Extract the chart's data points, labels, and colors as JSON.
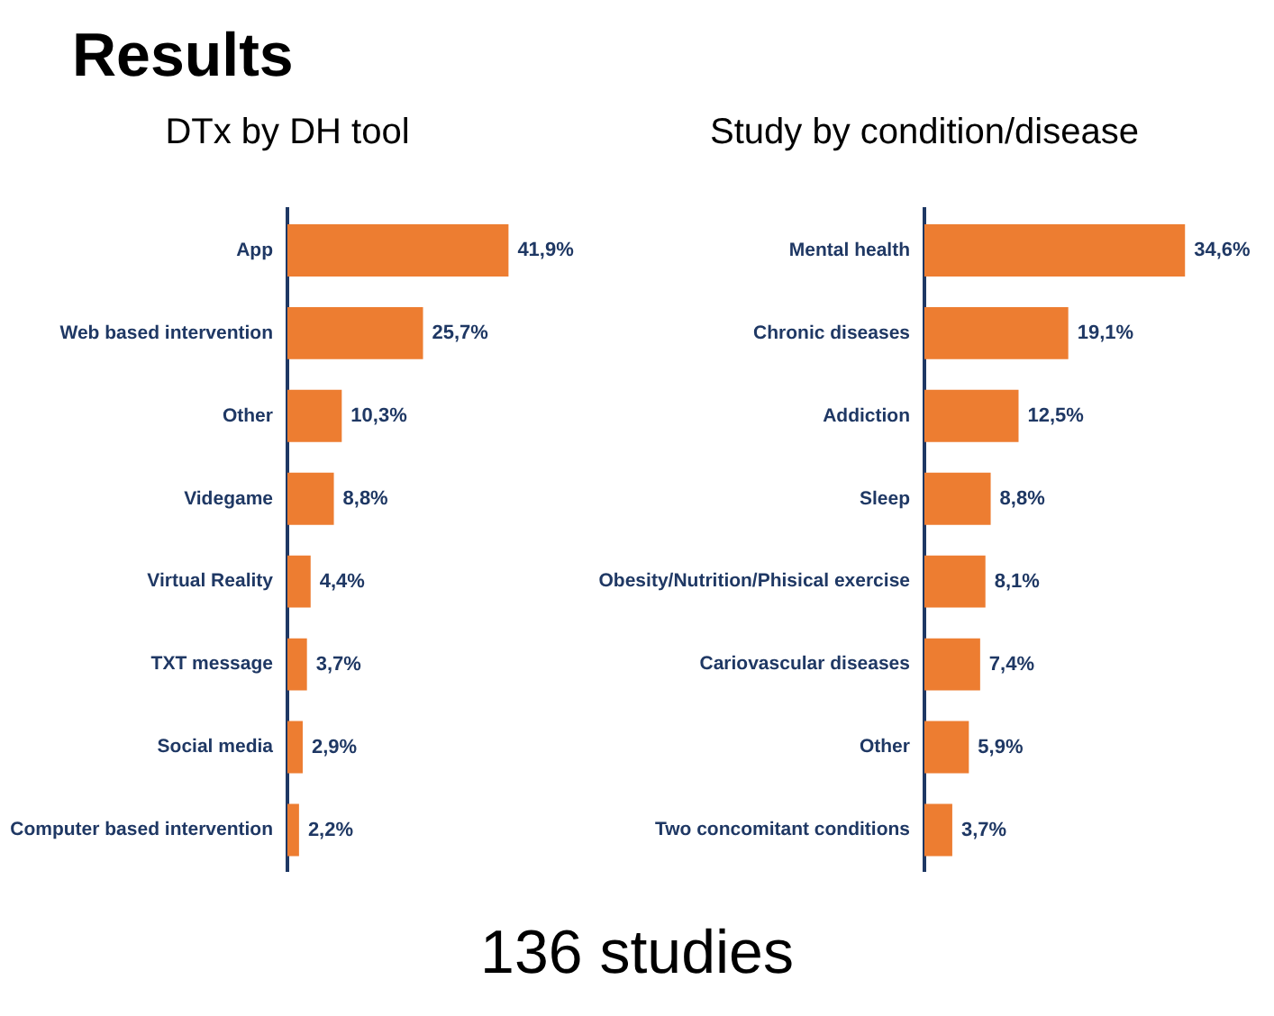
{
  "chart_data": [
    {
      "type": "bar",
      "orientation": "horizontal",
      "title": "DTx by DH tool",
      "annotations": [
        "Results",
        "136 studies"
      ],
      "categories": [
        "App",
        "Web based intervention",
        "Other",
        "Videgame",
        "Virtual Reality",
        "TXT message",
        "Social media",
        "Computer based intervention"
      ],
      "values": [
        41.9,
        25.7,
        10.3,
        8.8,
        4.4,
        3.7,
        2.9,
        2.2
      ],
      "value_labels": [
        "41,9%",
        "25,7%",
        "10,3%",
        "8,8%",
        "4,4%",
        "3,7%",
        "2,9%",
        "2,2%"
      ],
      "color": "#ed7d31",
      "legend": false,
      "grid": false,
      "tick_labels": "y"
    },
    {
      "type": "bar",
      "orientation": "horizontal",
      "title": "Study by condition/disease",
      "categories": [
        "Mental health",
        "Chronic diseases",
        "Addiction",
        "Sleep",
        "Obesity/Nutrition/Phisical exercise",
        "Cariovascular diseases",
        "Other",
        "Two concomitant conditions"
      ],
      "values": [
        34.6,
        19.1,
        12.5,
        8.8,
        8.1,
        7.4,
        5.9,
        3.7
      ],
      "value_labels": [
        "34,6%",
        "19,1%",
        "12,5%",
        "8,8%",
        "8,1%",
        "7,4%",
        "5,9%",
        "3,7%"
      ],
      "color": "#ed7d31",
      "legend": false,
      "grid": false,
      "tick_labels": "y"
    }
  ]
}
